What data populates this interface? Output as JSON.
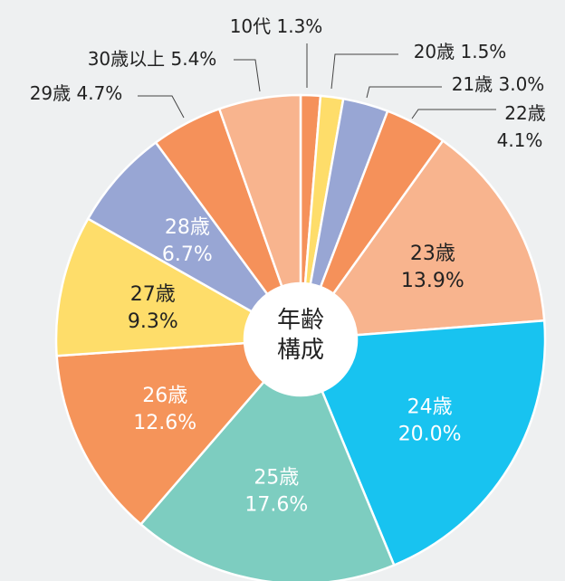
{
  "chart_data": {
    "type": "pie",
    "title": "",
    "center_label": [
      "年齢",
      "構成"
    ],
    "start": "12 o'clock, clockwise",
    "slices": [
      {
        "name": "10代",
        "value": 1.3,
        "value_label": "1.3%",
        "color": "#f5915a",
        "label_position": "outside"
      },
      {
        "name": "20歳",
        "value": 1.5,
        "value_label": "1.5%",
        "color": "#fedd6a",
        "label_position": "outside"
      },
      {
        "name": "21歳",
        "value": 3.0,
        "value_label": "3.0%",
        "color": "#98a6d4",
        "label_position": "outside"
      },
      {
        "name": "22歳",
        "value": 4.1,
        "value_label": "4.1%",
        "color": "#f5915a",
        "label_position": "outside"
      },
      {
        "name": "23歳",
        "value": 13.9,
        "value_label": "13.9%",
        "color": "#f8b48e",
        "label_position": "inside"
      },
      {
        "name": "24歳",
        "value": 20.0,
        "value_label": "20.0%",
        "color": "#18c3f0",
        "label_position": "inside",
        "label_color": "white"
      },
      {
        "name": "25歳",
        "value": 17.6,
        "value_label": "17.6%",
        "color": "#7dcdc0",
        "label_position": "inside",
        "label_color": "white"
      },
      {
        "name": "26歳",
        "value": 12.6,
        "value_label": "12.6%",
        "color": "#f5945a",
        "label_position": "inside",
        "label_color": "white"
      },
      {
        "name": "27歳",
        "value": 9.3,
        "value_label": "9.3%",
        "color": "#fedd6a",
        "label_position": "inside"
      },
      {
        "name": "28歳",
        "value": 6.7,
        "value_label": "6.7%",
        "color": "#98a6d4",
        "label_position": "inside",
        "label_color": "white"
      },
      {
        "name": "29歳",
        "value": 4.7,
        "value_label": "4.7%",
        "color": "#f5915a",
        "label_position": "outside"
      },
      {
        "name": "30歳以上",
        "value": 5.4,
        "value_label": "5.4%",
        "color": "#f8b48e",
        "label_position": "outside"
      }
    ]
  }
}
